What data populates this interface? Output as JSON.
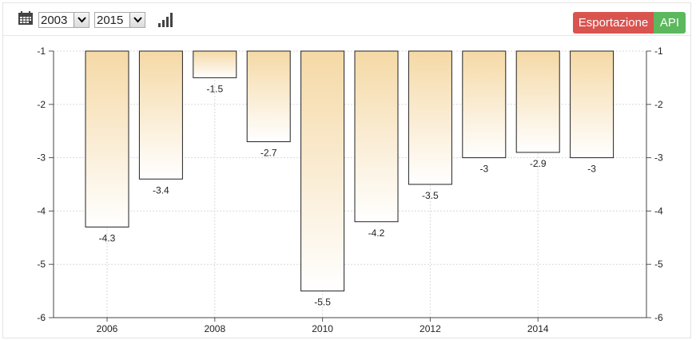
{
  "toolbar": {
    "calendar_icon": "calendar-icon",
    "start_year": "2003",
    "end_year": "2015",
    "chart_type_icon": "bar-chart-icon",
    "export_label": "Esportazione",
    "api_label": "API",
    "colors": {
      "export": "#d9534f",
      "api": "#5cb85c"
    }
  },
  "chart_data": {
    "type": "bar",
    "categories": [
      "2006",
      "2007",
      "2008",
      "2009",
      "2010",
      "2011",
      "2012",
      "2013",
      "2014",
      "2015"
    ],
    "values": [
      -4.3,
      -3.4,
      -1.5,
      -2.7,
      -5.5,
      -4.2,
      -3.5,
      -3,
      -2.9,
      -3
    ],
    "data_labels": [
      "-4.3",
      "-3.4",
      "-1.5",
      "-2.7",
      "-5.5",
      "-4.2",
      "-3.5",
      "-3",
      "-2.9",
      "-3"
    ],
    "x_tick_labels": [
      "2006",
      "2008",
      "2010",
      "2012",
      "2014"
    ],
    "y_ticks": [
      -1,
      -2,
      -3,
      -4,
      -5,
      -6
    ],
    "y_tick_labels": [
      "-1",
      "-2",
      "-3",
      "-4",
      "-5",
      "-6"
    ],
    "ylim": [
      -6,
      -1
    ],
    "bar_baseline": -1,
    "title": "",
    "xlabel": "",
    "ylabel": "",
    "grid": true,
    "right_axis": true,
    "bar_gradient": {
      "top": "#f5d9a6",
      "bottom": "#ffffff"
    },
    "bar_border": "#222222"
  }
}
